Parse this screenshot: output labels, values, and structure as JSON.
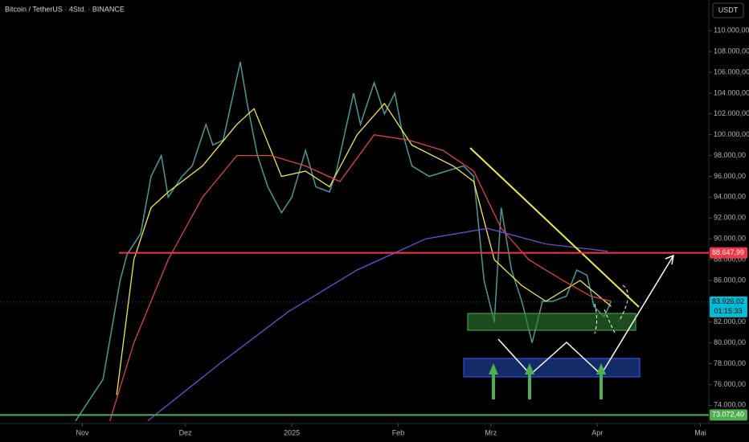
{
  "chart_data": {
    "type": "line",
    "title": "Bitcoin / TetherUS · 4Std. · BINANCE",
    "currency": "USDT",
    "xlim": [
      -24,
      182
    ],
    "ylim": [
      72250,
      112950
    ],
    "xticks": [
      {
        "value": 0,
        "label": "Nov"
      },
      {
        "value": 30,
        "label": "Dez"
      },
      {
        "value": 61,
        "label": "2025"
      },
      {
        "value": 92,
        "label": "Feb"
      },
      {
        "value": 119,
        "label": "Mrz"
      },
      {
        "value": 150,
        "label": "Apr"
      },
      {
        "value": 180,
        "label": "Mai"
      }
    ],
    "yticks": [
      {
        "value": 74000,
        "label": "74.000,00"
      },
      {
        "value": 76000,
        "label": "76.000,00"
      },
      {
        "value": 78000,
        "label": "78.000,00"
      },
      {
        "value": 80000,
        "label": "80.000,00"
      },
      {
        "value": 82000,
        "label": "82.000,00"
      },
      {
        "value": 84000,
        "label": "84.000,00"
      },
      {
        "value": 86000,
        "label": "86.000,00"
      },
      {
        "value": 88000,
        "label": "88.000,00"
      },
      {
        "value": 90000,
        "label": "90.000,00"
      },
      {
        "value": 92000,
        "label": "92.000,00"
      },
      {
        "value": 94000,
        "label": "94.000,00"
      },
      {
        "value": 96000,
        "label": "96.000,00"
      },
      {
        "value": 98000,
        "label": "98.000,00"
      },
      {
        "value": 100000,
        "label": "100.000,00"
      },
      {
        "value": 102000,
        "label": "102.000,00"
      },
      {
        "value": 104000,
        "label": "104.000,00"
      },
      {
        "value": 106000,
        "label": "106.000,00"
      },
      {
        "value": 108000,
        "label": "108.000,00"
      },
      {
        "value": 110000,
        "label": "110.000,00"
      }
    ],
    "series": [
      {
        "color": "#4a9b95",
        "x": [
          -2,
          6,
          11,
          13,
          17,
          20,
          23,
          25,
          29,
          32,
          36,
          38,
          41,
          46,
          48,
          51,
          54,
          58,
          61,
          65,
          68,
          72,
          74,
          79,
          81,
          85,
          88,
          91,
          93,
          96,
          101,
          106,
          111,
          114,
          117,
          120,
          122,
          125,
          128,
          131,
          134,
          137,
          141,
          144,
          147,
          149,
          152,
          154
        ],
        "values": [
          72500,
          76500,
          86000,
          88500,
          90500,
          96000,
          98000,
          94000,
          96000,
          97000,
          101000,
          99000,
          99500,
          107000,
          103000,
          98000,
          95000,
          92500,
          94000,
          98500,
          95000,
          94500,
          96500,
          104000,
          101000,
          105000,
          102000,
          104000,
          100500,
          97000,
          96000,
          96500,
          97000,
          96000,
          86000,
          82000,
          93000,
          87000,
          84000,
          80000,
          84000,
          84000,
          84500,
          87000,
          86500,
          83500,
          82500,
          84000
        ]
      },
      {
        "color": "#f5e84a",
        "x": [
          10,
          15,
          20,
          25,
          35,
          45,
          50,
          58,
          65,
          72,
          80,
          88,
          96,
          108,
          114,
          120,
          128,
          135,
          145,
          154
        ],
        "values": [
          75000,
          88000,
          93000,
          94500,
          97000,
          101000,
          102500,
          96000,
          96500,
          95000,
          100000,
          103000,
          99000,
          97000,
          95500,
          88000,
          85500,
          84000,
          86000,
          83500
        ]
      },
      {
        "color": "#e0424b",
        "x": [
          8,
          15,
          25,
          35,
          45,
          55,
          65,
          75,
          85,
          95,
          105,
          114,
          122,
          130,
          140,
          148,
          154
        ],
        "values": [
          72500,
          80000,
          88000,
          94000,
          98000,
          98000,
          97000,
          95500,
          100000,
          99500,
          98500,
          96500,
          91000,
          88000,
          86000,
          84500,
          84000
        ]
      },
      {
        "color": "#6a4fd8",
        "x": [
          19,
          40,
          60,
          80,
          100,
          118,
          135,
          148,
          153
        ],
        "values": [
          72500,
          78000,
          83000,
          87000,
          90000,
          91000,
          89500,
          89000,
          88800
        ]
      }
    ],
    "levels": [
      {
        "value": 88647.99,
        "label": "88.647,99",
        "color": "#f23645"
      },
      {
        "value": 73072.4,
        "label": "73.072,40",
        "color": "#4caf50"
      }
    ],
    "current": {
      "value": 83926.02,
      "label": "83.926,02",
      "countdown": "01:15:33",
      "color": "#00bcd4"
    }
  }
}
